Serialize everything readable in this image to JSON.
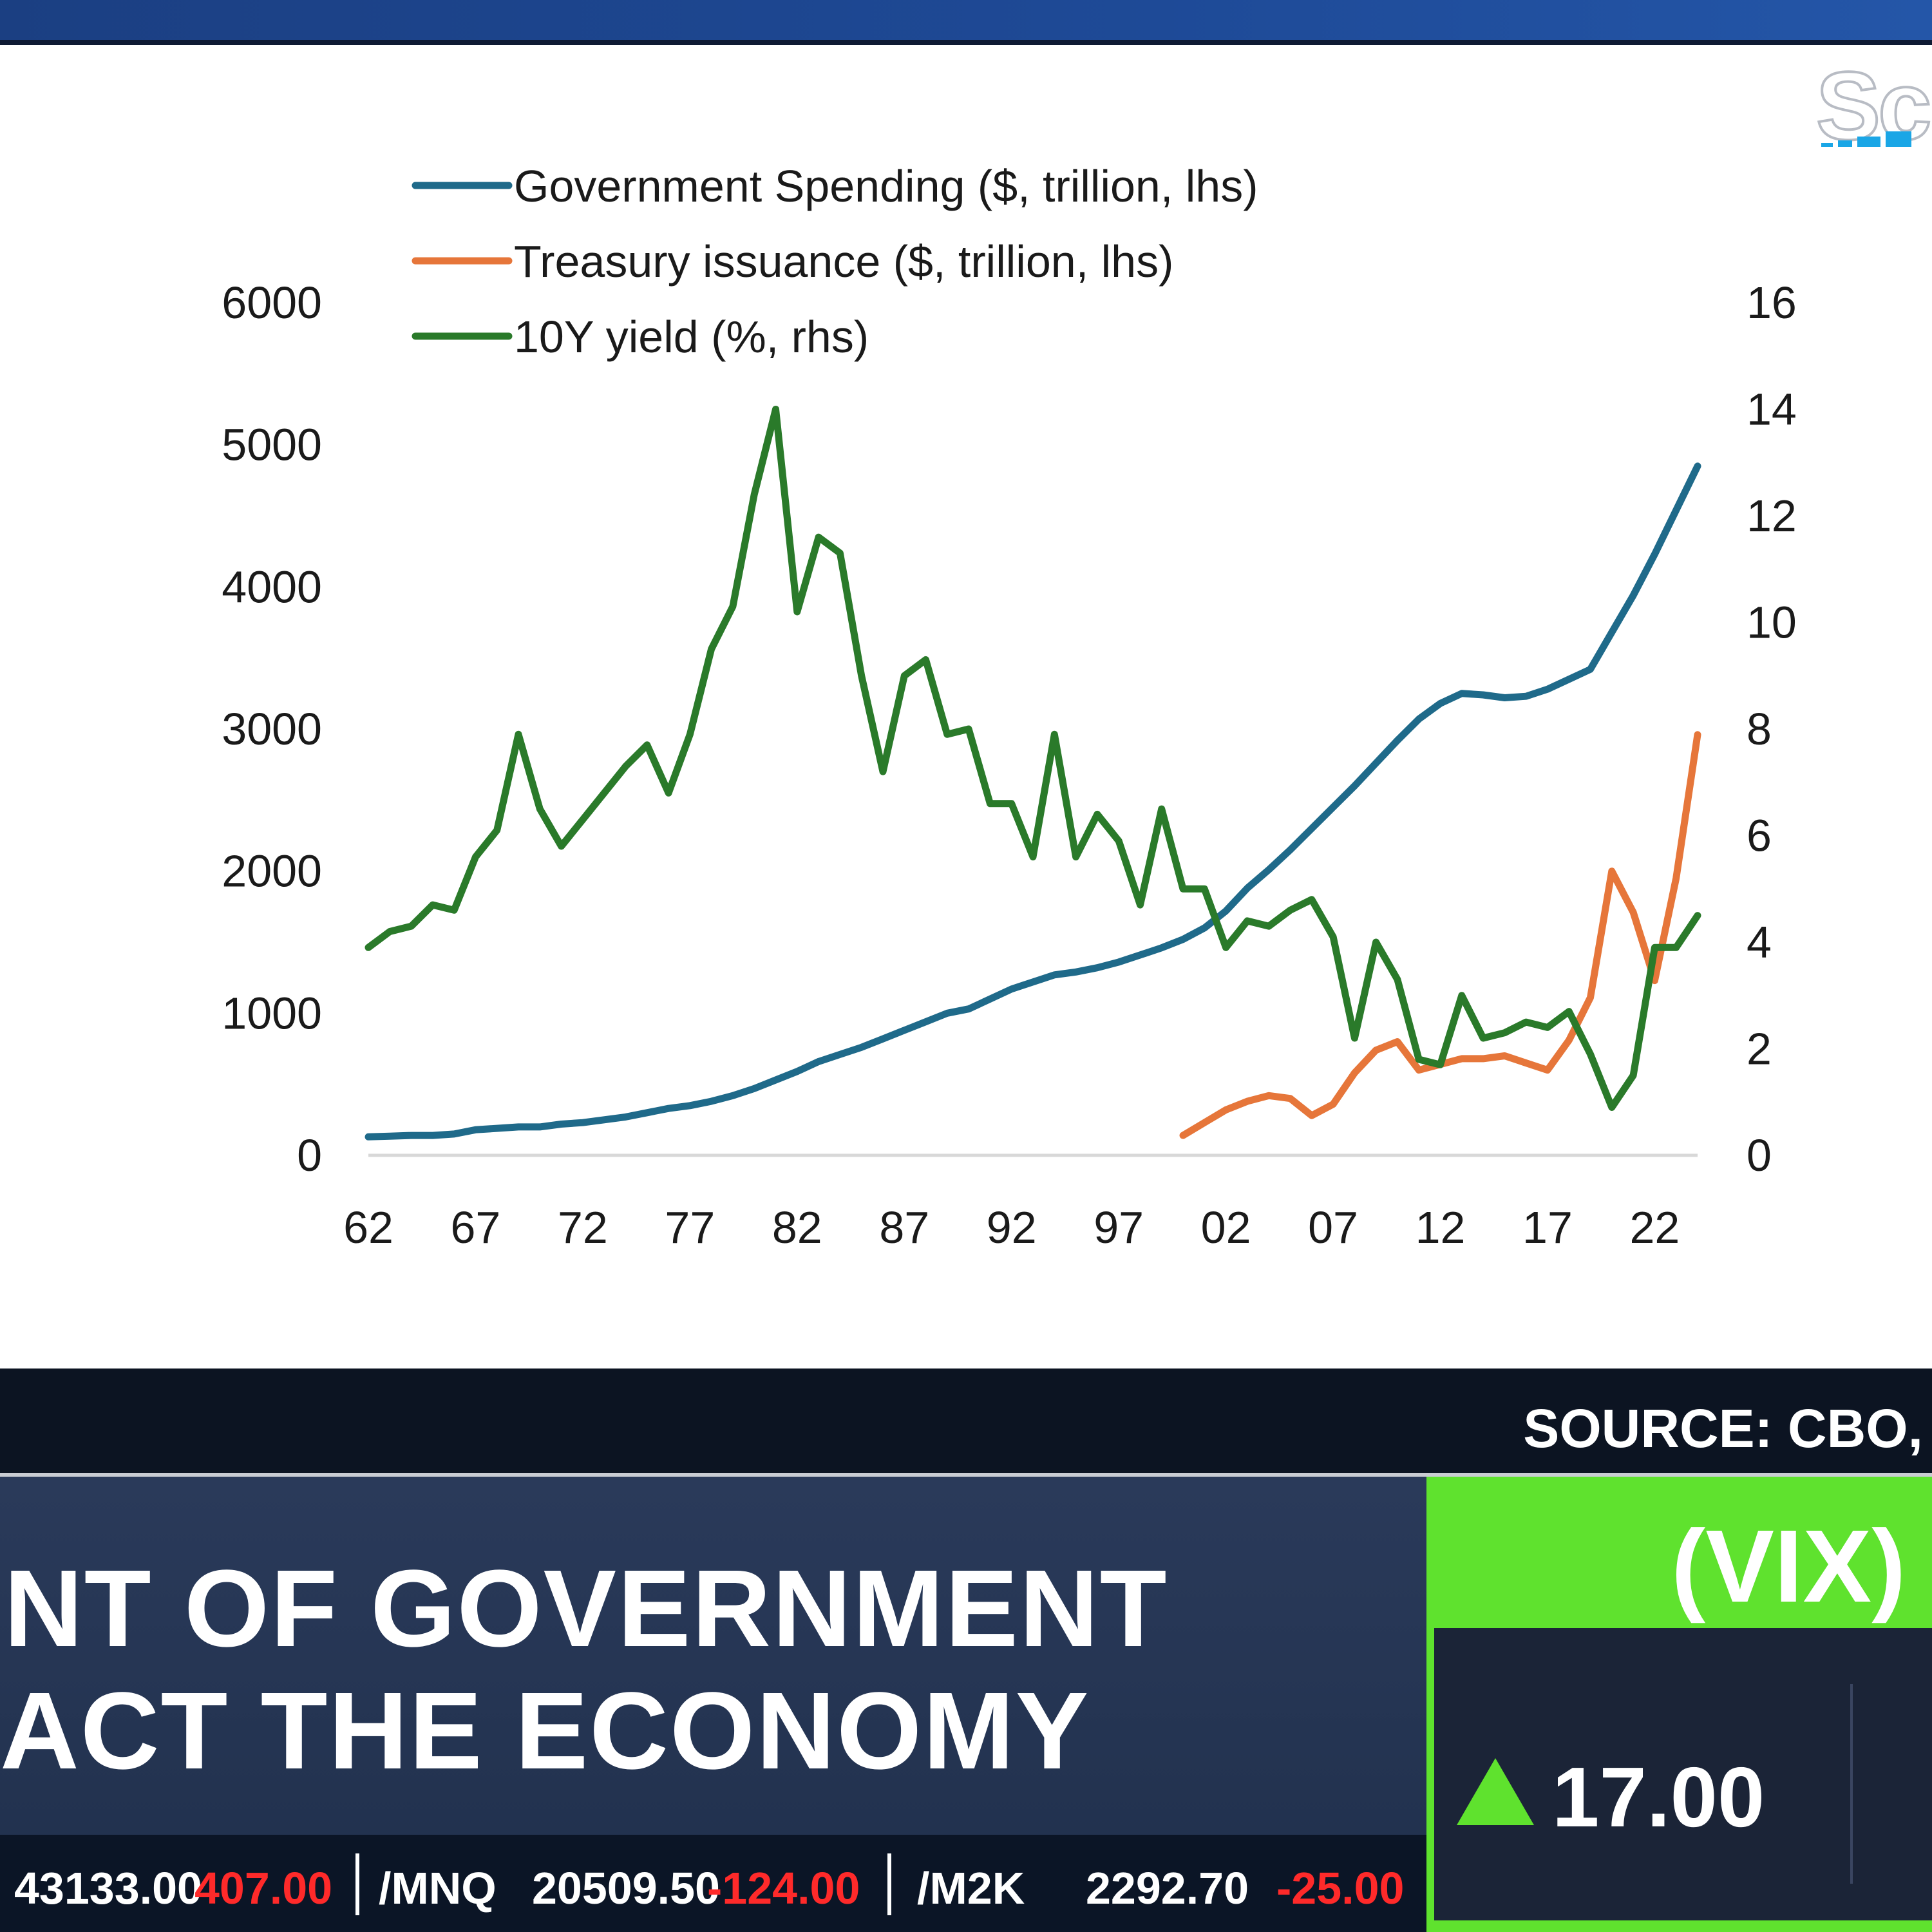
{
  "logo": {
    "text": "Sc"
  },
  "source": {
    "text": "SOURCE: CBO,"
  },
  "headline": {
    "line1": "NT OF GOVERNMENT",
    "line2": "ACT THE ECONOMY"
  },
  "ticker": {
    "item1_value": "43133.00",
    "item1_change": "407.00",
    "item2_symbol": "/MNQ",
    "item2_value": "20509.50",
    "item2_change": "-124.00",
    "item3_symbol": "/M2K",
    "item3_value": "2292.70",
    "item3_change": "-25.00"
  },
  "vix": {
    "title": "(VIX)",
    "value": "17.00",
    "direction": "up"
  },
  "colors": {
    "spending": "#1f6a8a",
    "issuance": "#e6763a",
    "yield": "#2a7a2a",
    "vix_green": "#5fe22e",
    "ticker_red": "#ff2a2a"
  },
  "chart_data": {
    "type": "line",
    "x": [
      1962,
      1963,
      1964,
      1965,
      1966,
      1967,
      1968,
      1969,
      1970,
      1971,
      1972,
      1973,
      1974,
      1975,
      1976,
      1977,
      1978,
      1979,
      1980,
      1981,
      1982,
      1983,
      1984,
      1985,
      1986,
      1987,
      1988,
      1989,
      1990,
      1991,
      1992,
      1993,
      1994,
      1995,
      1996,
      1997,
      1998,
      1999,
      2000,
      2001,
      2002,
      2003,
      2004,
      2005,
      2006,
      2007,
      2008,
      2009,
      2010,
      2011,
      2012,
      2013,
      2014,
      2015,
      2016,
      2017,
      2018,
      2019,
      2020,
      2021,
      2022,
      2023,
      2024
    ],
    "xticks": [
      "62",
      "67",
      "72",
      "77",
      "82",
      "87",
      "92",
      "97",
      "02",
      "07",
      "12",
      "17",
      "22"
    ],
    "xtick_years": [
      1962,
      1967,
      1972,
      1977,
      1982,
      1987,
      1992,
      1997,
      2002,
      2007,
      2012,
      2017,
      2022
    ],
    "yticks_left": [
      "0",
      "1000",
      "2000",
      "3000",
      "4000",
      "5000",
      "6000"
    ],
    "yticks_right": [
      "0",
      "2",
      "4",
      "6",
      "8",
      "10",
      "12",
      "14",
      "16"
    ],
    "ylim_left": [
      0,
      6000
    ],
    "ylim_right": [
      0,
      16
    ],
    "legend_position": "top-left",
    "grid": false,
    "series": [
      {
        "name": "Government Spending ($, trillion, lhs)",
        "axis": "left",
        "x": [
          1962,
          1963,
          1964,
          1965,
          1966,
          1967,
          1968,
          1969,
          1970,
          1971,
          1972,
          1973,
          1974,
          1975,
          1976,
          1977,
          1978,
          1979,
          1980,
          1981,
          1982,
          1983,
          1984,
          1985,
          1986,
          1987,
          1988,
          1989,
          1990,
          1991,
          1992,
          1993,
          1994,
          1995,
          1996,
          1997,
          1998,
          1999,
          2000,
          2001,
          2002,
          2003,
          2004,
          2005,
          2006,
          2007,
          2008,
          2009,
          2010,
          2011,
          2012,
          2013,
          2014,
          2015,
          2016,
          2017,
          2018,
          2019,
          2020,
          2021,
          2022,
          2023,
          2024
        ],
        "values": [
          130,
          135,
          140,
          140,
          150,
          180,
          190,
          200,
          200,
          220,
          230,
          250,
          270,
          300,
          330,
          350,
          380,
          420,
          470,
          530,
          590,
          660,
          710,
          760,
          820,
          880,
          940,
          1000,
          1030,
          1100,
          1170,
          1220,
          1270,
          1290,
          1320,
          1360,
          1410,
          1460,
          1520,
          1600,
          1720,
          1880,
          2010,
          2150,
          2300,
          2450,
          2600,
          2760,
          2920,
          3070,
          3180,
          3250,
          3240,
          3220,
          3230,
          3280,
          3350,
          3420,
          3680,
          3940,
          4230,
          4540,
          4850
        ]
      },
      {
        "name": "Treasury issuance ($, trillion, lhs)",
        "axis": "left",
        "x": [
          2000,
          2001,
          2002,
          2003,
          2004,
          2005,
          2006,
          2007,
          2008,
          2009,
          2010,
          2011,
          2012,
          2013,
          2014,
          2015,
          2016,
          2017,
          2018,
          2019,
          2020,
          2021,
          2022,
          2023,
          2024
        ],
        "values": [
          140,
          230,
          320,
          380,
          420,
          400,
          280,
          360,
          580,
          740,
          800,
          600,
          640,
          680,
          680,
          700,
          650,
          600,
          810,
          1110,
          2000,
          1710,
          1230,
          1950,
          2960
        ]
      },
      {
        "name": "10Y yield (%, rhs)",
        "axis": "right",
        "x": [
          1962,
          1963,
          1964,
          1965,
          1966,
          1967,
          1968,
          1969,
          1970,
          1971,
          1972,
          1973,
          1974,
          1975,
          1976,
          1977,
          1978,
          1979,
          1980,
          1981,
          1982,
          1983,
          1984,
          1985,
          1986,
          1987,
          1988,
          1989,
          1990,
          1991,
          1992,
          1993,
          1994,
          1995,
          1996,
          1997,
          1998,
          1999,
          2000,
          2001,
          2002,
          2003,
          2004,
          2005,
          2006,
          2007,
          2008,
          2009,
          2010,
          2011,
          2012,
          2013,
          2014,
          2015,
          2016,
          2017,
          2018,
          2019,
          2020,
          2021,
          2022,
          2023,
          2024
        ],
        "values": [
          3.9,
          4.2,
          4.3,
          4.7,
          4.6,
          5.6,
          6.1,
          7.9,
          6.5,
          5.8,
          6.3,
          6.8,
          7.3,
          7.7,
          6.8,
          7.9,
          9.5,
          10.3,
          12.4,
          14.0,
          10.2,
          11.6,
          11.3,
          9.0,
          7.2,
          9.0,
          9.3,
          7.9,
          8.0,
          6.6,
          6.6,
          5.6,
          7.9,
          5.6,
          6.4,
          5.9,
          4.7,
          6.5,
          5.0,
          5.0,
          3.9,
          4.4,
          4.3,
          4.6,
          4.8,
          4.1,
          2.2,
          4.0,
          3.3,
          1.8,
          1.7,
          3.0,
          2.2,
          2.3,
          2.5,
          2.4,
          2.7,
          1.9,
          0.9,
          1.5,
          3.9,
          3.9,
          4.5
        ]
      }
    ]
  }
}
